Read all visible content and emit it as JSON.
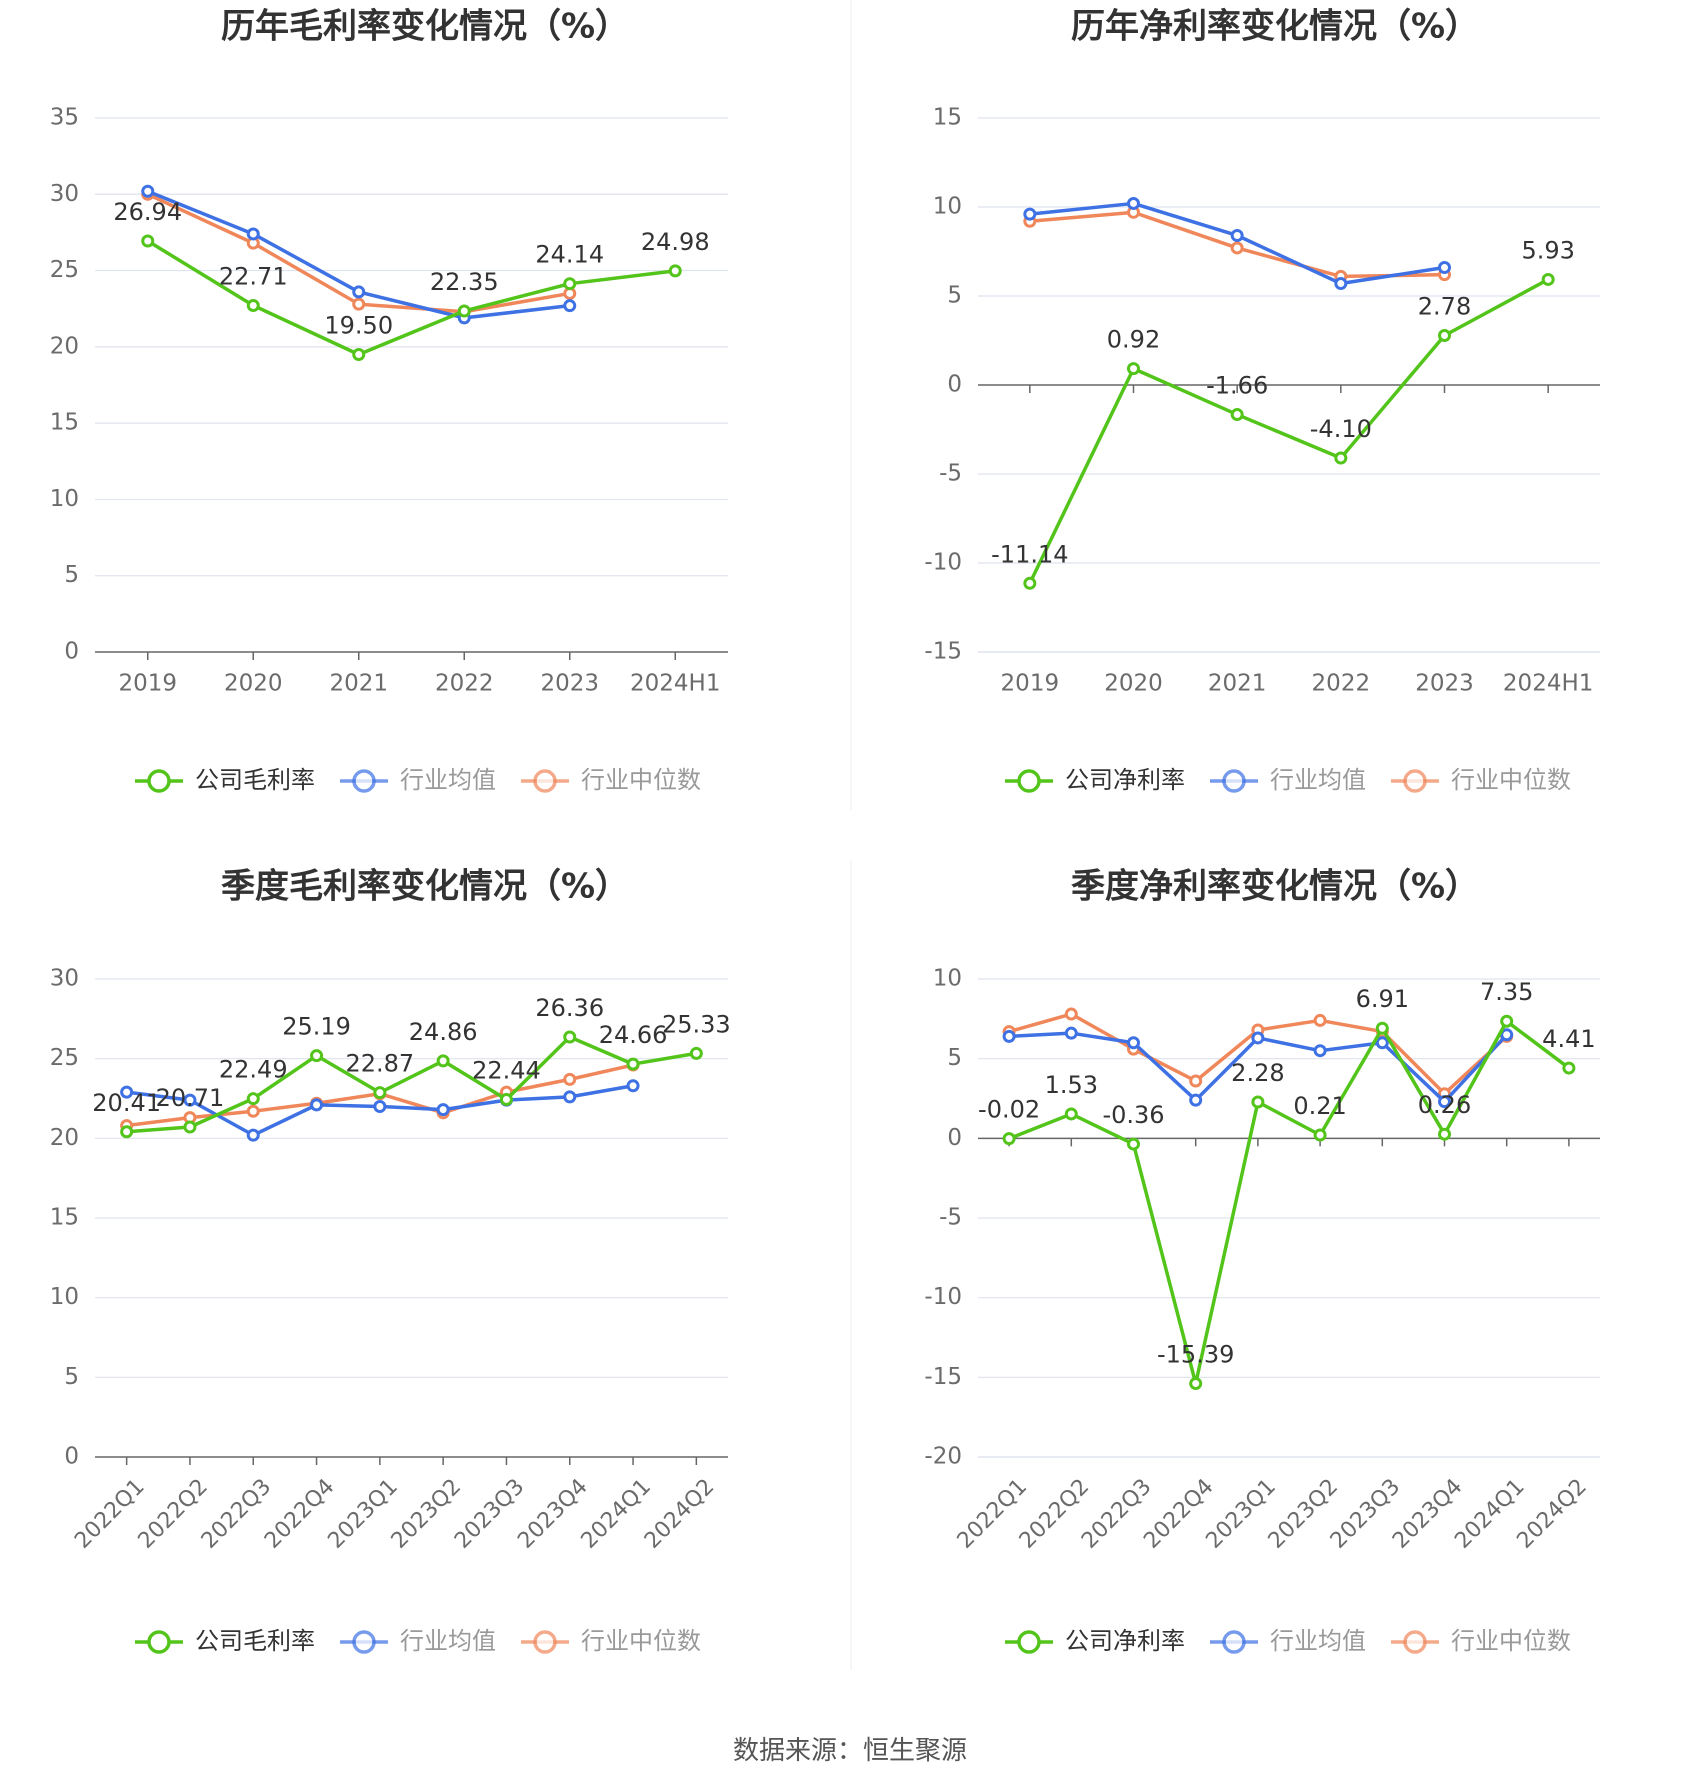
{
  "source": {
    "label": "数据来源：",
    "value": "恒生聚源"
  },
  "colors": {
    "company": "#52c41a",
    "avg": "#3e71e4",
    "median": "#f0875a",
    "grid": "#dfe3ee",
    "axis": "#666666",
    "tick": "#6b6b6b",
    "title": "#333333",
    "label": "#333333"
  },
  "chart_data": [
    {
      "type": "line",
      "title": "历年毛利率变化情况（%）",
      "categories": [
        "2019",
        "2020",
        "2021",
        "2022",
        "2023",
        "2024H1"
      ],
      "ylim": [
        0,
        35
      ],
      "yticks": [
        0,
        5,
        10,
        15,
        20,
        25,
        30,
        35
      ],
      "series": [
        {
          "name": "公司毛利率",
          "key": "company",
          "values": [
            26.94,
            22.71,
            19.5,
            22.35,
            24.14,
            24.98
          ],
          "labels": [
            "26.94",
            "22.71",
            "19.50",
            "22.35",
            "24.14",
            "24.98"
          ]
        },
        {
          "name": "行业均值",
          "key": "avg",
          "values": [
            30.2,
            27.4,
            23.6,
            21.9,
            22.7,
            null
          ]
        },
        {
          "name": "行业中位数",
          "key": "median",
          "values": [
            30.0,
            26.8,
            22.8,
            22.3,
            23.5,
            null
          ]
        }
      ]
    },
    {
      "type": "line",
      "title": "历年净利率变化情况（%）",
      "categories": [
        "2019",
        "2020",
        "2021",
        "2022",
        "2023",
        "2024H1"
      ],
      "ylim": [
        -15,
        15
      ],
      "yticks": [
        -15,
        -10,
        -5,
        0,
        5,
        10,
        15
      ],
      "series": [
        {
          "name": "公司净利率",
          "key": "company",
          "values": [
            -11.14,
            0.92,
            -1.66,
            -4.1,
            2.78,
            5.93
          ],
          "labels": [
            "-11.14",
            "0.92",
            "-1.66",
            "-4.10",
            "2.78",
            "5.93"
          ]
        },
        {
          "name": "行业均值",
          "key": "avg",
          "values": [
            9.6,
            10.2,
            8.4,
            5.7,
            6.6,
            null
          ]
        },
        {
          "name": "行业中位数",
          "key": "median",
          "values": [
            9.2,
            9.7,
            7.7,
            6.1,
            6.2,
            null
          ]
        }
      ]
    },
    {
      "type": "line",
      "title": "季度毛利率变化情况（%）",
      "categories": [
        "2022Q1",
        "2022Q2",
        "2022Q3",
        "2022Q4",
        "2023Q1",
        "2023Q2",
        "2023Q3",
        "2023Q4",
        "2024Q1",
        "2024Q2"
      ],
      "ylim": [
        0,
        30
      ],
      "yticks": [
        0,
        5,
        10,
        15,
        20,
        25,
        30
      ],
      "series": [
        {
          "name": "公司毛利率",
          "key": "company",
          "values": [
            20.41,
            20.71,
            22.49,
            25.19,
            22.87,
            24.86,
            22.44,
            26.36,
            24.66,
            25.33
          ],
          "labels": [
            "20.41",
            "20.71",
            "22.49",
            "25.19",
            "22.87",
            "24.86",
            "22.44",
            "26.36",
            "24.66",
            "25.33"
          ]
        },
        {
          "name": "行业均值",
          "key": "avg",
          "values": [
            22.9,
            22.4,
            20.2,
            22.1,
            22.0,
            21.8,
            22.4,
            22.6,
            23.3,
            null
          ]
        },
        {
          "name": "行业中位数",
          "key": "median",
          "values": [
            20.8,
            21.3,
            21.7,
            22.2,
            22.8,
            21.6,
            22.9,
            23.7,
            24.6,
            null
          ]
        }
      ]
    },
    {
      "type": "line",
      "title": "季度净利率变化情况（%）",
      "categories": [
        "2022Q1",
        "2022Q2",
        "2022Q3",
        "2022Q4",
        "2023Q1",
        "2023Q2",
        "2023Q3",
        "2023Q4",
        "2024Q1",
        "2024Q2"
      ],
      "ylim": [
        -20,
        10
      ],
      "yticks": [
        -20,
        -15,
        -10,
        -5,
        0,
        5,
        10
      ],
      "series": [
        {
          "name": "公司净利率",
          "key": "company",
          "values": [
            -0.02,
            1.53,
            -0.36,
            -15.39,
            2.28,
            0.21,
            6.91,
            0.26,
            7.35,
            4.41
          ],
          "labels": [
            "-0.02",
            "1.53",
            "-0.36",
            "-15.39",
            "2.28",
            "0.21",
            "6.91",
            "0.26",
            "7.35",
            "4.41"
          ]
        },
        {
          "name": "行业均值",
          "key": "avg",
          "values": [
            6.4,
            6.6,
            6.0,
            2.4,
            6.3,
            5.5,
            6.0,
            2.3,
            6.5,
            null
          ]
        },
        {
          "name": "行业中位数",
          "key": "median",
          "values": [
            6.7,
            7.8,
            5.6,
            3.6,
            6.8,
            7.4,
            6.7,
            2.8,
            6.4,
            null
          ]
        }
      ]
    }
  ]
}
